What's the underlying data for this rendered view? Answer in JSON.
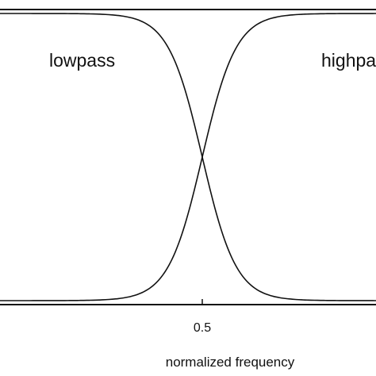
{
  "chart_data": {
    "type": "line",
    "title": "",
    "xlabel": "normalized frequency",
    "ylabel": "",
    "xlim": [
      0.0,
      0.93
    ],
    "ylim": [
      0.0,
      1.0
    ],
    "grid": false,
    "x_ticks": [
      0.5
    ],
    "x_tick_labels": [
      "0.5"
    ],
    "series": [
      {
        "name": "lowpass",
        "x": [
          0.0,
          0.15,
          0.2,
          0.25,
          0.3,
          0.35,
          0.4,
          0.45,
          0.5,
          0.55,
          0.6,
          0.65,
          0.7,
          0.75,
          0.8,
          0.85,
          0.93
        ],
        "values": [
          1.0,
          1.0,
          0.995,
          0.985,
          0.955,
          0.875,
          0.72,
          0.48,
          0.5,
          0.25,
          0.13,
          0.055,
          0.02,
          0.006,
          0.002,
          0.0,
          0.0
        ]
      },
      {
        "name": "highpass",
        "x": [
          0.0,
          0.15,
          0.2,
          0.25,
          0.3,
          0.35,
          0.4,
          0.45,
          0.5,
          0.55,
          0.6,
          0.65,
          0.7,
          0.75,
          0.8,
          0.85,
          0.93
        ],
        "values": [
          0.0,
          0.0,
          0.005,
          0.015,
          0.045,
          0.125,
          0.28,
          0.52,
          0.5,
          0.75,
          0.87,
          0.945,
          0.98,
          0.994,
          0.998,
          1.0,
          1.0
        ]
      }
    ],
    "colors": {
      "line": "#111111",
      "background": "#ffffff"
    }
  }
}
